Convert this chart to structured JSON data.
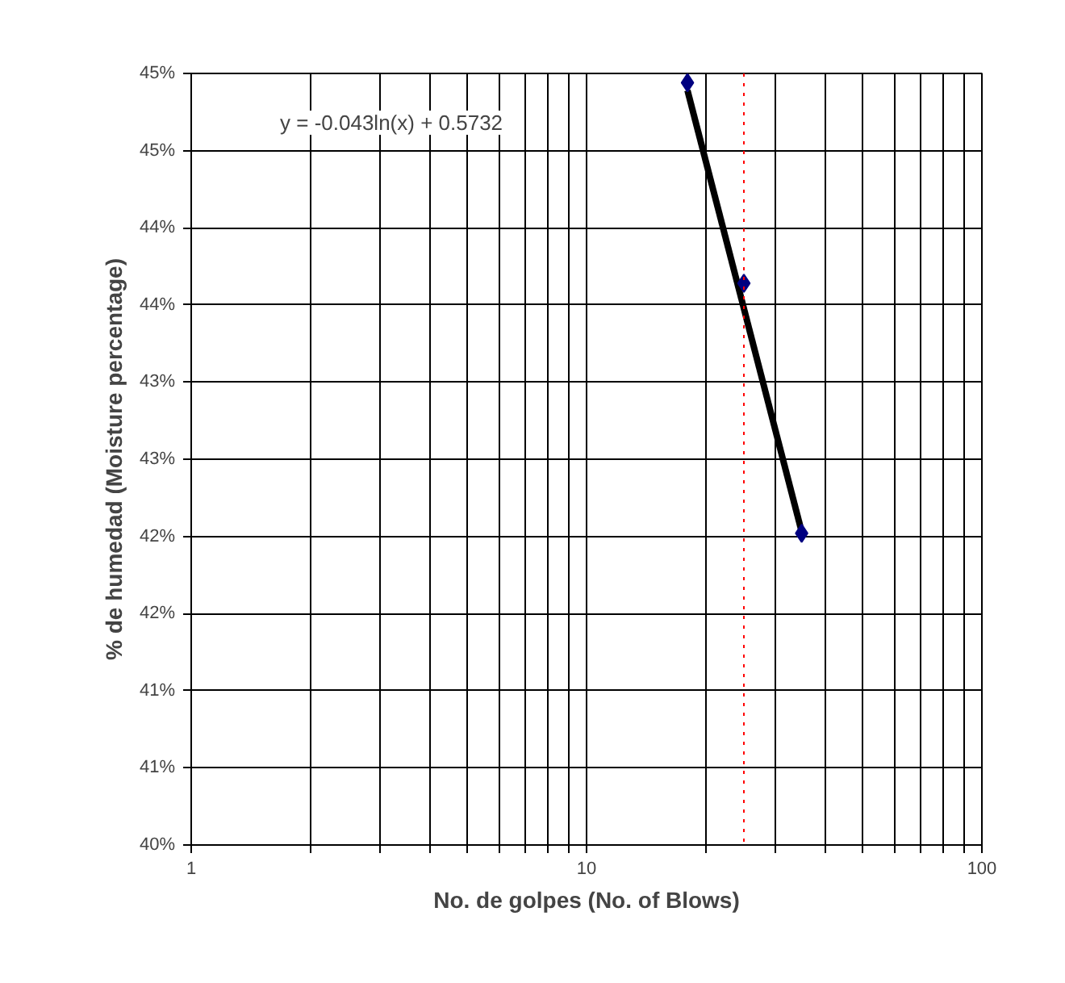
{
  "chart_data": {
    "type": "scatter",
    "xlabel": "No. de golpes (No. of Blows)",
    "ylabel": "% de humedad (Moisture percentage)",
    "log": "x",
    "xlim": [
      1,
      100
    ],
    "ylim": [
      0.4,
      0.45
    ],
    "xticks": [
      1,
      {
        "value": 2,
        "label": null
      },
      {
        "value": 3,
        "label": null
      },
      {
        "value": 4,
        "label": null
      },
      {
        "value": 5,
        "label": null
      },
      {
        "value": 6,
        "label": null
      },
      {
        "value": 7,
        "label": null
      },
      {
        "value": 8,
        "label": null
      },
      {
        "value": 9,
        "label": null
      },
      10,
      {
        "value": 20,
        "label": null
      },
      {
        "value": 30,
        "label": null
      },
      {
        "value": 40,
        "label": null
      },
      {
        "value": 50,
        "label": null
      },
      {
        "value": 60,
        "label": null
      },
      {
        "value": 70,
        "label": null
      },
      {
        "value": 80,
        "label": null
      },
      {
        "value": 90,
        "label": null
      },
      100
    ],
    "yticks": [
      {
        "value": 0.4,
        "label": "40%"
      },
      {
        "value": 0.405,
        "label": "41%"
      },
      {
        "value": 0.41,
        "label": "41%"
      },
      {
        "value": 0.415,
        "label": "42%"
      },
      {
        "value": 0.42,
        "label": "42%"
      },
      {
        "value": 0.425,
        "label": "43%"
      },
      {
        "value": 0.43,
        "label": "43%"
      },
      {
        "value": 0.435,
        "label": "44%"
      },
      {
        "value": 0.44,
        "label": "44%"
      },
      {
        "value": 0.445,
        "label": "45%"
      },
      {
        "value": 0.45,
        "label": "45%"
      }
    ],
    "grid": true,
    "marker": "diamond",
    "series": [
      {
        "type": "line",
        "marker": "none",
        "color": "#000000",
        "x": [
          18,
          35
        ],
        "values": [
          0.4489,
          0.4203
        ]
      },
      {
        "color": "#000080",
        "x": [
          18,
          25,
          35
        ],
        "values": [
          0.4494,
          0.4364,
          0.4202
        ]
      }
    ],
    "ref_lines": [
      {
        "axis": "x",
        "value": 25,
        "color": "#ff0000",
        "line_style": "dotted"
      }
    ],
    "annotations": [
      "y = -0.043ln(x) + 0.5732"
    ]
  }
}
